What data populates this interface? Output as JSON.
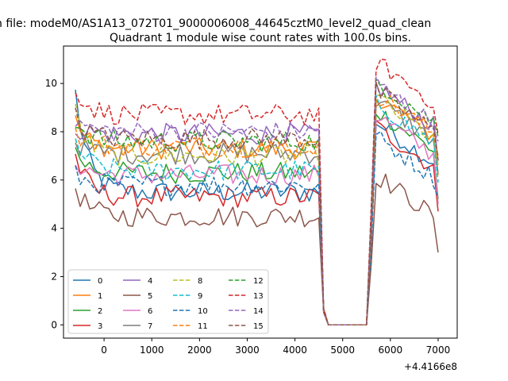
{
  "suptitle": "n file: modeM0/AS1A13_072T01_9000006008_44645cztM0_level2_quad_clean",
  "chart_data": {
    "type": "line",
    "title": "Quadrant 1 module wise count rates with 100.0s bins.",
    "xlabel": "",
    "ylabel": "",
    "x_offset_label": "+4.4166e8",
    "xlim": [
      -850,
      7400
    ],
    "ylim": [
      -0.55,
      11.55
    ],
    "xticks": [
      0,
      1000,
      2000,
      3000,
      4000,
      5000,
      6000,
      7000
    ],
    "yticks": [
      0,
      2,
      4,
      6,
      8,
      10
    ],
    "grid": false,
    "legend": {
      "placement": "lower-left",
      "columns": 4
    },
    "x_start": -600,
    "x_step": 100,
    "gap": {
      "drop_start_x": 4500,
      "zero_from_x": 4700,
      "zero_to_x": 5500,
      "rise_end_x": 5700
    },
    "series": [
      {
        "name": "0",
        "color": "#1f77b4",
        "style": "solid",
        "pre_level": 5.5,
        "post_level": 7.4,
        "start": 9.6,
        "end": 5.0
      },
      {
        "name": "1",
        "color": "#ff7f0e",
        "style": "solid",
        "pre_level": 7.3,
        "post_level": 8.5,
        "start": 8.4,
        "end": 6.2
      },
      {
        "name": "2",
        "color": "#2ca02c",
        "style": "solid",
        "pre_level": 6.3,
        "post_level": 7.9,
        "start": 7.2,
        "end": 5.2
      },
      {
        "name": "3",
        "color": "#d62728",
        "style": "solid",
        "pre_level": 5.3,
        "post_level": 7.2,
        "start": 7.0,
        "end": 4.7
      },
      {
        "name": "4",
        "color": "#9467bd",
        "style": "solid",
        "pre_level": 7.9,
        "post_level": 8.9,
        "start": 8.2,
        "end": 6.8
      },
      {
        "name": "5",
        "color": "#8c564b",
        "style": "solid",
        "pre_level": 4.5,
        "post_level": 5.2,
        "start": 5.7,
        "end": 3.0
      },
      {
        "name": "6",
        "color": "#e377c2",
        "style": "solid",
        "pre_level": 6.2,
        "post_level": 7.7,
        "start": 6.8,
        "end": 5.0
      },
      {
        "name": "7",
        "color": "#7f7f7f",
        "style": "solid",
        "pre_level": 7.1,
        "post_level": 8.3,
        "start": 7.6,
        "end": 6.3
      },
      {
        "name": "8",
        "color": "#bcbd22",
        "style": "dashed",
        "pre_level": 7.0,
        "post_level": 8.4,
        "start": 8.8,
        "end": 6.6
      },
      {
        "name": "9",
        "color": "#17becf",
        "style": "dashed",
        "pre_level": 6.4,
        "post_level": 8.2,
        "start": 7.6,
        "end": 5.9
      },
      {
        "name": "10",
        "color": "#1f77b4",
        "style": "dashed",
        "pre_level": 5.8,
        "post_level": 6.8,
        "start": 6.2,
        "end": 5.3
      },
      {
        "name": "11",
        "color": "#ff7f0e",
        "style": "dashed",
        "pre_level": 7.4,
        "post_level": 8.6,
        "start": 8.0,
        "end": 7.0
      },
      {
        "name": "12",
        "color": "#2ca02c",
        "style": "dashed",
        "pre_level": 7.6,
        "post_level": 9.1,
        "start": 8.5,
        "end": 7.8
      },
      {
        "name": "13",
        "color": "#d62728",
        "style": "dashed",
        "pre_level": 8.7,
        "post_level": 9.9,
        "start": 9.9,
        "end": 7.9
      },
      {
        "name": "14",
        "color": "#9467bd",
        "style": "dashed",
        "pre_level": 8.0,
        "post_level": 9.0,
        "start": 8.5,
        "end": 7.6
      },
      {
        "name": "15",
        "color": "#8c564b",
        "style": "dashed",
        "pre_level": 7.7,
        "post_level": 8.7,
        "start": 8.6,
        "end": 6.8
      }
    ]
  }
}
